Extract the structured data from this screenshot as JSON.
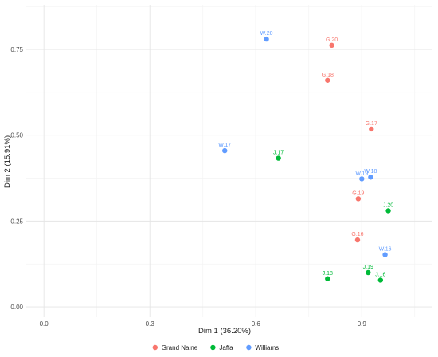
{
  "chart_data": {
    "type": "scatter",
    "xlabel": "Dim 1 (36.20%)",
    "ylabel": "Dim 2 (15.91%)",
    "xlim": [
      -0.05,
      1.1
    ],
    "ylim": [
      -0.03,
      0.88
    ],
    "xticks": [
      0.0,
      0.3,
      0.6,
      0.9
    ],
    "xtick_labels": [
      "0.0",
      "0.3",
      "0.6",
      "0.9"
    ],
    "yticks": [
      0.0,
      0.25,
      0.5,
      0.75
    ],
    "ytick_labels": [
      "0.00",
      "0.25",
      "0.50",
      "0.75"
    ],
    "grid": true,
    "legend_position": "bottom",
    "series": [
      {
        "name": "Grand Naine",
        "color": "#F8766D",
        "points": [
          {
            "label": "G.20",
            "x": 0.815,
            "y": 0.762
          },
          {
            "label": "G.18",
            "x": 0.803,
            "y": 0.66
          },
          {
            "label": "G.17",
            "x": 0.927,
            "y": 0.518
          },
          {
            "label": "G.19",
            "x": 0.89,
            "y": 0.315
          },
          {
            "label": "G.16",
            "x": 0.888,
            "y": 0.195
          }
        ]
      },
      {
        "name": "Jaffa",
        "color": "#00BA38",
        "points": [
          {
            "label": "J.17",
            "x": 0.664,
            "y": 0.433
          },
          {
            "label": "J.20",
            "x": 0.975,
            "y": 0.28
          },
          {
            "label": "J.19",
            "x": 0.918,
            "y": 0.1
          },
          {
            "label": "J.16",
            "x": 0.953,
            "y": 0.078
          },
          {
            "label": "J.18",
            "x": 0.803,
            "y": 0.082
          }
        ]
      },
      {
        "name": "Williams",
        "color": "#619CFF",
        "points": [
          {
            "label": "W.20",
            "x": 0.63,
            "y": 0.78
          },
          {
            "label": "W.17",
            "x": 0.512,
            "y": 0.455
          },
          {
            "label": "W.19",
            "x": 0.9,
            "y": 0.373
          },
          {
            "label": "W.18",
            "x": 0.925,
            "y": 0.378
          },
          {
            "label": "W.16",
            "x": 0.966,
            "y": 0.152
          }
        ]
      }
    ]
  }
}
